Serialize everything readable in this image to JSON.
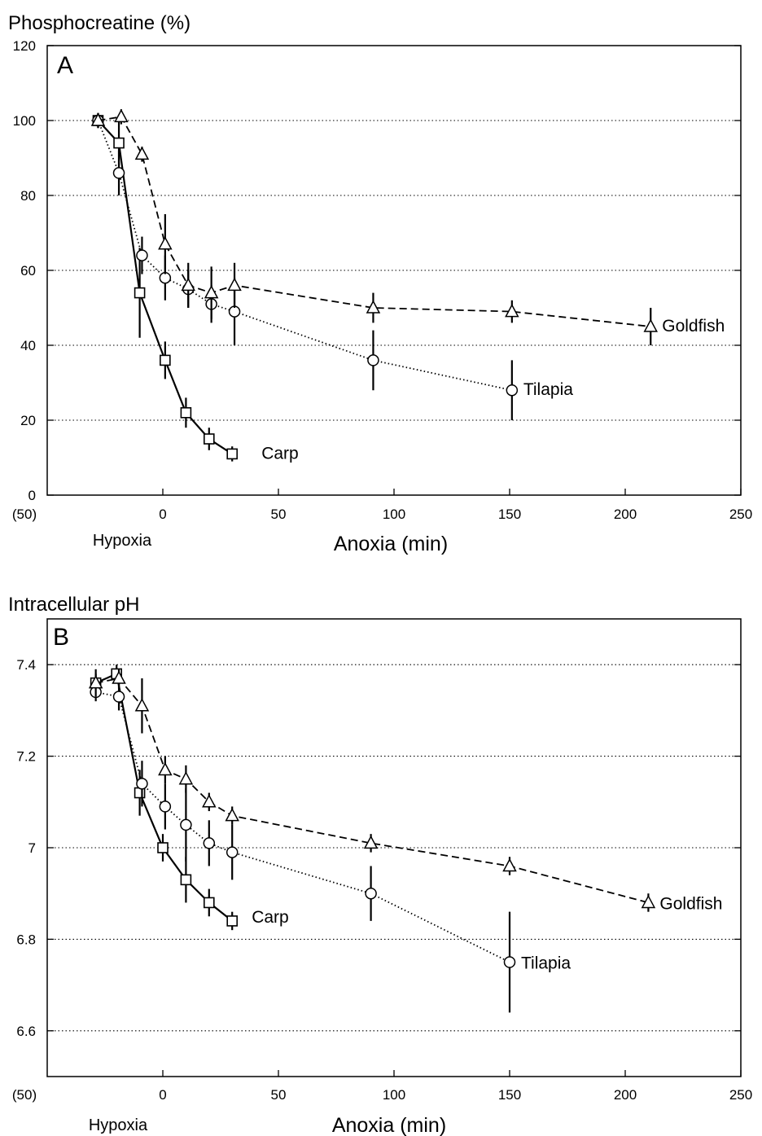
{
  "chart_data": [
    {
      "type": "line",
      "panel_label": "A",
      "ylabel": "Phosphocreatine (%)",
      "xlabel": "Anoxia (min)",
      "xlabel_left": "Hypoxia",
      "x_left_tick": "(50)",
      "xlim": [
        -50,
        250
      ],
      "ylim": [
        0,
        120
      ],
      "xticks": [
        0,
        50,
        100,
        150,
        200,
        250
      ],
      "yticks": [
        0,
        20,
        40,
        60,
        80,
        100,
        120
      ],
      "grid": "horizontal dotted",
      "series": [
        {
          "name": "Carp",
          "marker": "square",
          "line": "solid",
          "x": [
            -28,
            -19,
            -10,
            1,
            10,
            20,
            30
          ],
          "y": [
            100,
            94,
            54,
            36,
            22,
            15,
            11
          ],
          "err": [
            0,
            6,
            12,
            5,
            4,
            3,
            2
          ]
        },
        {
          "name": "Tilapia",
          "marker": "circle",
          "line": "dotted",
          "x": [
            -28,
            -19,
            -9,
            1,
            11,
            21,
            31,
            91,
            151
          ],
          "y": [
            100,
            86,
            64,
            58,
            55,
            51,
            49,
            36,
            28
          ],
          "err": [
            2,
            6,
            5,
            6,
            5,
            5,
            9,
            8,
            8
          ]
        },
        {
          "name": "Goldfish",
          "marker": "triangle",
          "line": "dashed",
          "x": [
            -28,
            -18,
            -9,
            1,
            11,
            21,
            31,
            91,
            151,
            211
          ],
          "y": [
            100,
            101,
            91,
            67,
            56,
            54,
            56,
            50,
            49,
            45
          ],
          "err": [
            2,
            2,
            2,
            8,
            6,
            7,
            6,
            4,
            3,
            5
          ]
        }
      ]
    },
    {
      "type": "line",
      "panel_label": "B",
      "ylabel": "Intracellular pH",
      "xlabel": "Anoxia (min)",
      "xlabel_left": "Hypoxia",
      "x_left_tick": "(50)",
      "xlim": [
        -50,
        250
      ],
      "ylim": [
        6.5,
        7.5
      ],
      "xticks": [
        0,
        50,
        100,
        150,
        200,
        250
      ],
      "yticks": [
        6.6,
        6.8,
        7,
        7.2,
        7.4
      ],
      "ytick_labels": [
        "6.6",
        "6.8",
        "7",
        "7.2",
        "7.4"
      ],
      "grid": "horizontal dotted",
      "series": [
        {
          "name": "Carp",
          "marker": "square",
          "line": "solid",
          "x": [
            -29,
            -20,
            -10,
            0,
            10,
            20,
            30
          ],
          "y": [
            7.36,
            7.38,
            7.12,
            7.0,
            6.93,
            6.88,
            6.84
          ],
          "err": [
            0.02,
            0.02,
            0.05,
            0.03,
            0.05,
            0.03,
            0.02
          ]
        },
        {
          "name": "Tilapia",
          "marker": "circle",
          "line": "dotted",
          "x": [
            -29,
            -19,
            -9,
            1,
            10,
            20,
            30,
            90,
            150
          ],
          "y": [
            7.34,
            7.33,
            7.14,
            7.09,
            7.05,
            7.01,
            6.99,
            6.9,
            6.75
          ],
          "err": [
            0.02,
            0.03,
            0.05,
            0.05,
            0.08,
            0.05,
            0.06,
            0.06,
            0.11
          ]
        },
        {
          "name": "Goldfish",
          "marker": "triangle",
          "line": "dashed",
          "x": [
            -29,
            -19,
            -9,
            1,
            10,
            20,
            30,
            90,
            150,
            210
          ],
          "y": [
            7.36,
            7.37,
            7.31,
            7.17,
            7.15,
            7.1,
            7.07,
            7.01,
            6.96,
            6.88
          ],
          "err": [
            0.03,
            0.02,
            0.06,
            0.03,
            0.03,
            0.02,
            0.02,
            0.02,
            0.02,
            0.02
          ]
        }
      ]
    }
  ]
}
